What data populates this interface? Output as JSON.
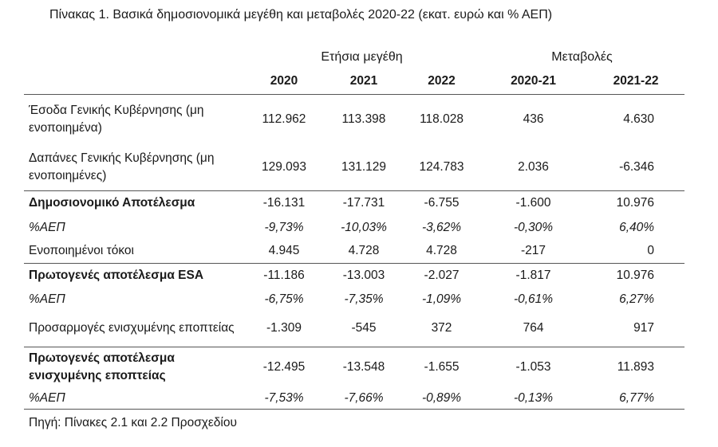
{
  "caption": "Πίνακας 1. Βασικά δημοσιονομικά μεγέθη και μεταβολές 2020-22 (εκατ. ευρώ και % ΑΕΠ)",
  "group_headers": {
    "annual": "Ετήσια μεγέθη",
    "changes": "Μεταβολές"
  },
  "year_headers": [
    "2020",
    "2021",
    "2022",
    "2020-21",
    "2021-22"
  ],
  "rows": [
    {
      "label": "Έσοδα Γενικής Κυβέρνησης (μη ενοποιημένα)",
      "values": [
        "112.962",
        "113.398",
        "118.028",
        "436",
        "4.630"
      ]
    },
    {
      "label": "Δαπάνες Γενικής Κυβέρνησης (μη ενοποιημένες)",
      "values": [
        "129.093",
        "131.129",
        "124.783",
        "2.036",
        "-6.346"
      ]
    },
    {
      "label": "Δημοσιονομικό Αποτέλεσμα",
      "values": [
        "-16.131",
        "-17.731",
        "-6.755",
        "-1.600",
        "10.976"
      ]
    },
    {
      "label": "%ΑΕΠ",
      "values": [
        "-9,73%",
        "-10,03%",
        "-3,62%",
        "-0,30%",
        "6,40%"
      ]
    },
    {
      "label": "Ενοποιημένοι τόκοι",
      "values": [
        "4.945",
        "4.728",
        "4.728",
        "-217",
        "0"
      ]
    },
    {
      "label": "Πρωτογενές αποτέλεσμα ESA",
      "values": [
        "-11.186",
        "-13.003",
        "-2.027",
        "-1.817",
        "10.976"
      ]
    },
    {
      "label": "%ΑΕΠ",
      "values": [
        "-6,75%",
        "-7,35%",
        "-1,09%",
        "-0,61%",
        "6,27%"
      ]
    },
    {
      "label": "Προσαρμογές ενισχυμένης εποπτείας",
      "values": [
        "-1.309",
        "-545",
        "372",
        "764",
        "917"
      ]
    },
    {
      "label": "Πρωτογενές αποτέλεσμα ενισχυμένης εποπτείας",
      "values": [
        "-12.495",
        "-13.548",
        "-1.655",
        "-1.053",
        "11.893"
      ]
    },
    {
      "label": "%ΑΕΠ",
      "values": [
        "-7,53%",
        "-7,66%",
        "-0,89%",
        "-0,13%",
        "6,77%"
      ]
    }
  ],
  "source": "Πηγή: Πίνακες 2.1 και 2.2 Προσχεδίου"
}
